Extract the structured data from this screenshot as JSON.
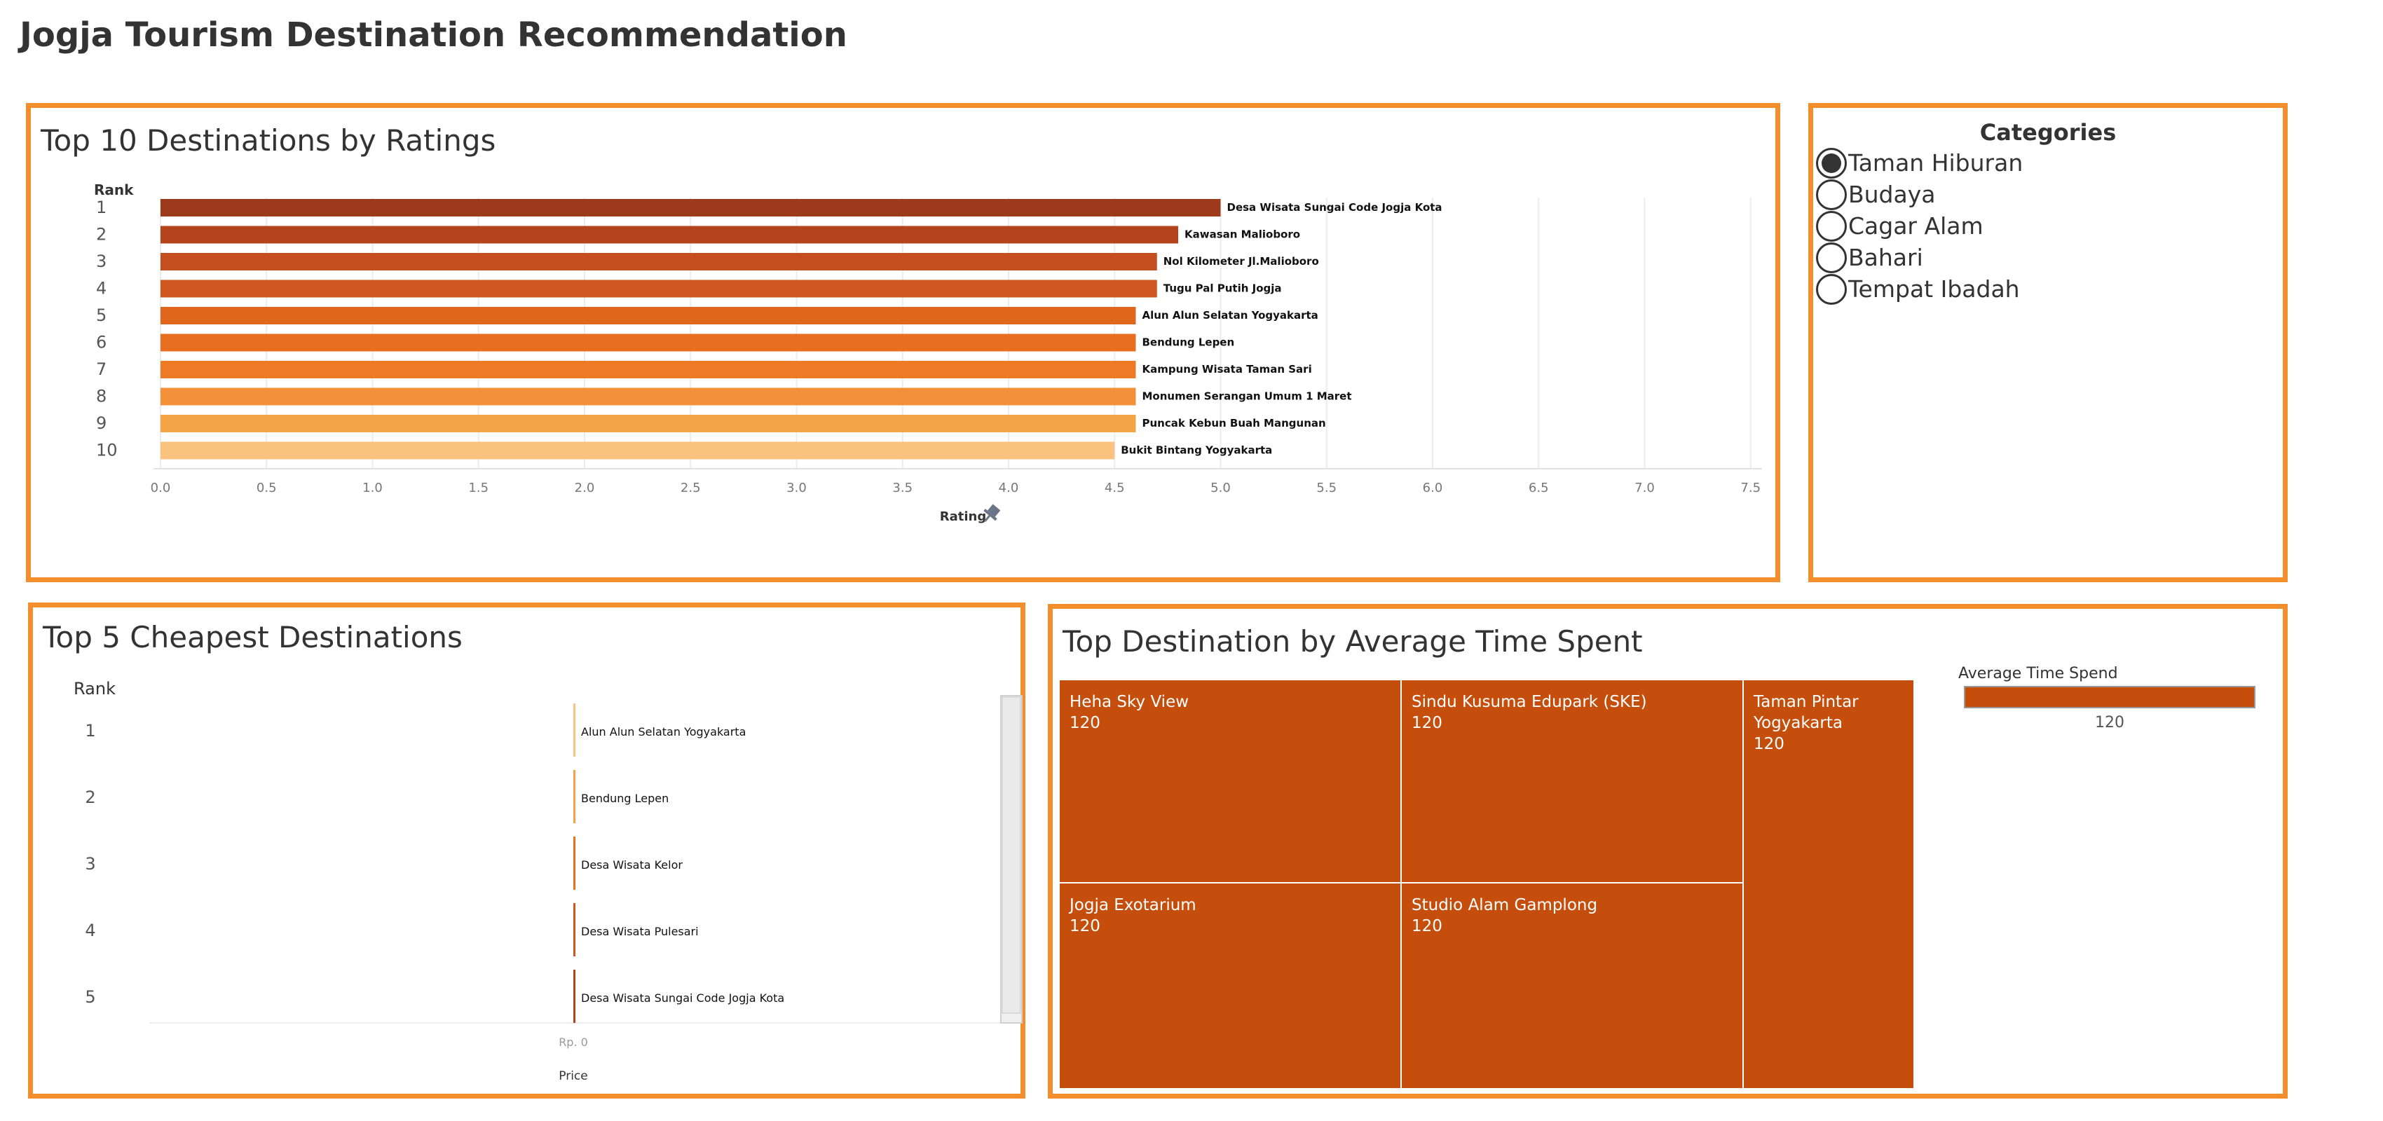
{
  "page": {
    "title": "Jogja Tourism Destination Recommendation"
  },
  "colors": {
    "panel_border": "#F28E2B",
    "treemap_fill": "#C54E0C",
    "rating_bar_gradient": [
      "#9E3A1C",
      "#B4441C",
      "#C54E1E",
      "#D0561F",
      "#E0661D",
      "#E86F1F",
      "#EE7A25",
      "#F3913B",
      "#F5A347",
      "#FBC27F"
    ]
  },
  "ratings_panel": {
    "title": "Top 10 Destinations by Ratings",
    "chart_data": {
      "type": "bar",
      "orientation": "horizontal",
      "ylabel": "Rank",
      "xlabel": "Rating",
      "xlim": [
        0,
        7.6
      ],
      "x_ticks": [
        "0.0",
        "0.5",
        "1.0",
        "1.5",
        "2.0",
        "2.5",
        "3.0",
        "3.5",
        "4.0",
        "4.5",
        "5.0",
        "5.5",
        "6.0",
        "6.5",
        "7.0",
        "7.5"
      ],
      "grid": true,
      "categories": [
        "1",
        "2",
        "3",
        "4",
        "5",
        "6",
        "7",
        "8",
        "9",
        "10"
      ],
      "labels": [
        "Desa Wisata Sungai Code Jogja Kota",
        "Kawasan Malioboro",
        "Nol Kilometer Jl.Malioboro",
        "Tugu Pal Putih Jogja",
        "Alun Alun Selatan Yogyakarta",
        "Bendung Lepen",
        "Kampung Wisata Taman Sari",
        "Monumen Serangan Umum 1 Maret",
        "Puncak Kebun Buah Mangunan",
        "Bukit Bintang Yogyakarta"
      ],
      "values": [
        5.0,
        4.8,
        4.7,
        4.7,
        4.6,
        4.6,
        4.6,
        4.6,
        4.6,
        4.5
      ]
    }
  },
  "categories_panel": {
    "title": "Categories",
    "items": [
      {
        "label": "Taman Hiburan",
        "checked": true
      },
      {
        "label": "Budaya",
        "checked": false
      },
      {
        "label": "Cagar Alam",
        "checked": false
      },
      {
        "label": "Bahari",
        "checked": false
      },
      {
        "label": "Tempat Ibadah",
        "checked": false
      }
    ]
  },
  "cheapest_panel": {
    "title": "Top 5 Cheapest Destinations",
    "chart_data": {
      "type": "bar",
      "orientation": "horizontal",
      "ylabel": "Rank",
      "xlabel": "Price",
      "x_ticks": [
        "Rp. 0"
      ],
      "categories": [
        "1",
        "2",
        "3",
        "4",
        "5"
      ],
      "labels": [
        "Alun Alun Selatan Yogyakarta",
        "Bendung Lepen",
        "Desa Wisata Kelor",
        "Desa Wisata Pulesari",
        "Desa Wisata Sungai Code Jogja Kota"
      ],
      "values": [
        0,
        0,
        0,
        0,
        0
      ]
    },
    "mark_colors": [
      "#FBC27F",
      "#F5A347",
      "#E86F1F",
      "#D0561F",
      "#B4441C"
    ]
  },
  "time_panel": {
    "title": "Top Destination by Average Time Spent",
    "chart_data": {
      "type": "treemap",
      "labels": [
        "Heha Sky View",
        "Sindu Kusuma Edupark (SKE)",
        "Taman Pintar Yogyakarta",
        "Jogja Exotarium",
        "Studio Alam Gamplong"
      ],
      "values": [
        120,
        120,
        120,
        120,
        120
      ]
    },
    "cells": [
      {
        "name": "Heha Sky View",
        "value": "120"
      },
      {
        "name": "Sindu Kusuma Edupark (SKE)",
        "value": "120"
      },
      {
        "name": "Taman Pintar Yogyakarta",
        "value": "120"
      },
      {
        "name": "Jogja Exotarium",
        "value": "120"
      },
      {
        "name": "Studio Alam Gamplong",
        "value": "120"
      }
    ],
    "legend": {
      "title": "Average Time Spend",
      "value": "120"
    }
  }
}
